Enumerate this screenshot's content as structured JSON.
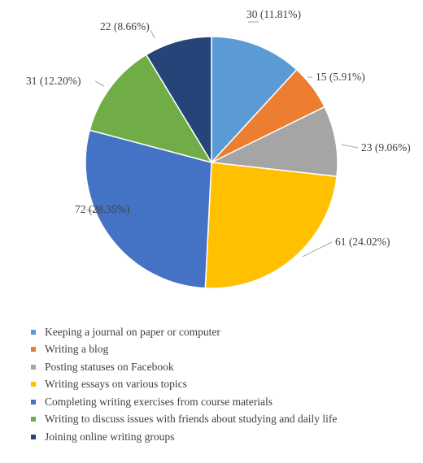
{
  "chart_data": {
    "type": "pie",
    "start_angle_deg": 0,
    "direction": "clockwise",
    "slices": [
      {
        "label": "Keeping a journal on paper or computer",
        "value": 30,
        "data_label": "30 (11.81%)",
        "color": "#5B9BD5"
      },
      {
        "label": "Writing a blog",
        "value": 15,
        "data_label": "15 (5.91%)",
        "color": "#ED7D31"
      },
      {
        "label": "Posting statuses on Facebook",
        "value": 23,
        "data_label": "23 (9.06%)",
        "color": "#A5A5A5"
      },
      {
        "label": "Writing essays on various topics",
        "value": 61,
        "data_label": "61 (24.02%)",
        "color": "#FFC000"
      },
      {
        "label": "Completing writing exercises from course materials",
        "value": 72,
        "data_label": "72 (28.35%)",
        "color": "#4472C4"
      },
      {
        "label": "Writing to discuss issues with friends about studying and daily life",
        "value": 31,
        "data_label": "31 (12.20%)",
        "color": "#70AD47"
      },
      {
        "label": "Joining online writing groups",
        "value": 22,
        "data_label": "22 (8.66%)",
        "color": "#264478"
      }
    ],
    "legend_position": "bottom"
  }
}
